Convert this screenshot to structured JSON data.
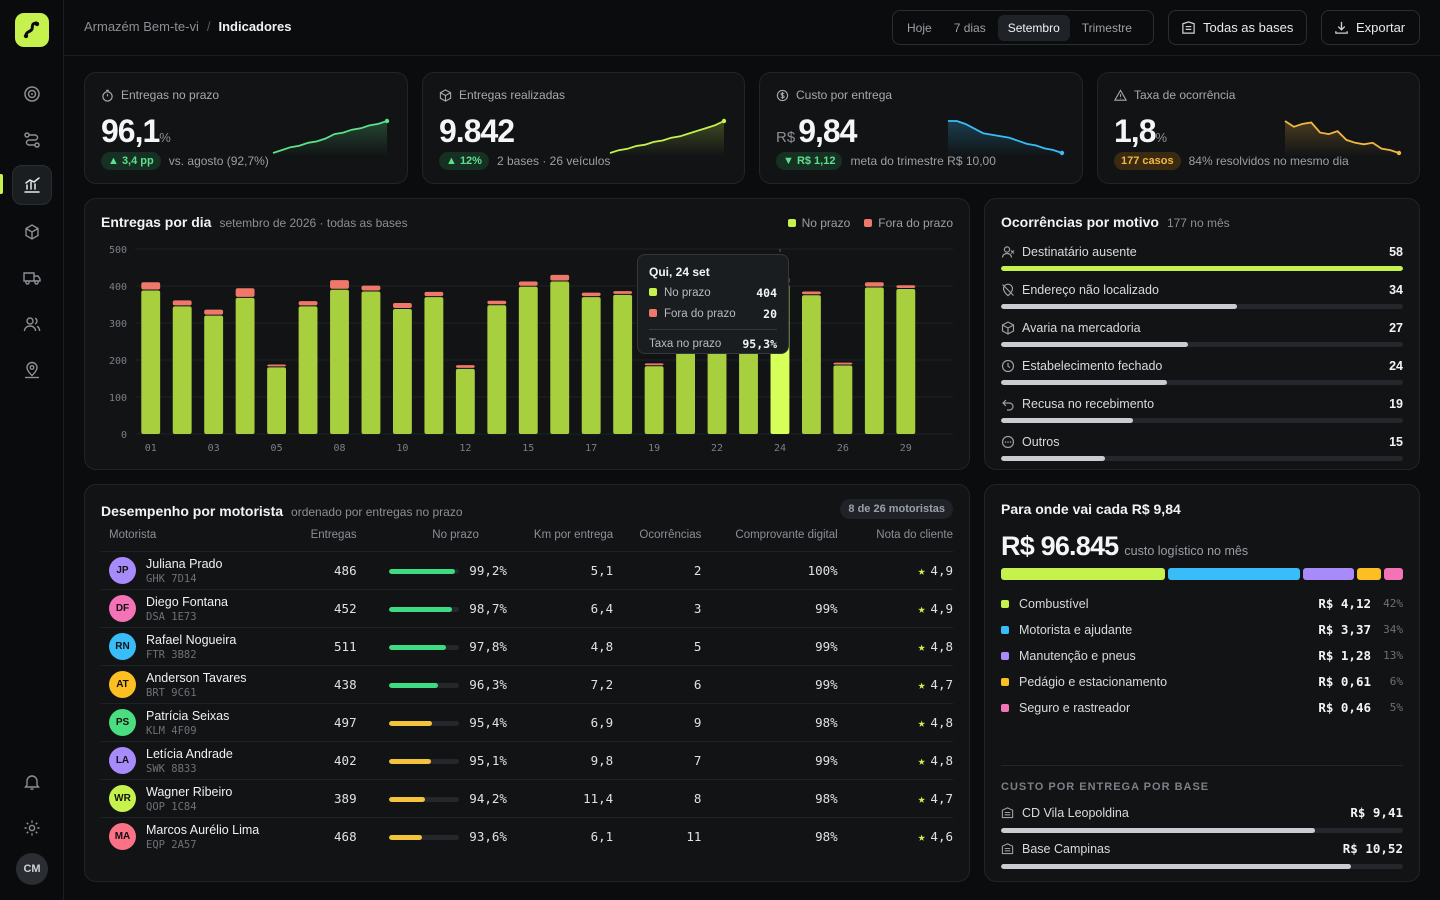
{
  "header": {
    "company": "Armazém Bem-te-vi",
    "separator": "/",
    "page": "Indicadores",
    "periods": [
      "Hoje",
      "7 dias",
      "Setembro",
      "Trimestre"
    ],
    "active_period": "Setembro",
    "bases_label": "Todas as bases",
    "export_label": "Exportar"
  },
  "user": {
    "initials": "CM"
  },
  "kpis": [
    {
      "label": "Entregas no prazo",
      "prefix": "",
      "value": "96,1",
      "suffix": "%",
      "delta": "▲ 3,4 pp",
      "note": "vs. agosto (92,7%)",
      "spark": [
        20,
        22,
        24,
        25,
        27,
        28,
        30,
        33,
        34,
        36,
        37,
        39,
        40,
        42
      ]
    },
    {
      "label": "Entregas realizadas",
      "prefix": "",
      "value": "9.842",
      "suffix": "",
      "delta": "▲ 12%",
      "note": "2 bases · 26 veículos",
      "spark": [
        20,
        22,
        23,
        25,
        26,
        28,
        29,
        31,
        32,
        34,
        36,
        38,
        40,
        43
      ]
    },
    {
      "label": "Custo por entrega",
      "prefix": "R$",
      "value": "9,84",
      "suffix": "",
      "delta": "▼ R$ 1,12",
      "note": "meta do trimestre R$ 10,00",
      "spark": [
        42,
        42,
        40,
        37,
        34,
        33,
        32,
        31,
        29,
        27,
        26,
        24,
        23,
        21
      ]
    },
    {
      "label": "Taxa de ocorrência",
      "prefix": "",
      "value": "1,8",
      "suffix": "%",
      "delta": "177 casos",
      "note": "84% resolvidos no mesmo dia",
      "spark": [
        42,
        38,
        40,
        41,
        34,
        33,
        35,
        29,
        27,
        26,
        27,
        23,
        22,
        20
      ]
    }
  ],
  "daily": {
    "title": "Entregas por dia",
    "subtitle": "setembro de 2026 · todas as bases",
    "legend_on": "No prazo",
    "legend_off": "Fora do prazo"
  },
  "chart_data": {
    "type": "bar",
    "ylim": [
      0,
      500
    ],
    "yticks": [
      0,
      100,
      200,
      300,
      400,
      500
    ],
    "categories": [
      "01",
      "02",
      "03",
      "04",
      "05",
      "06",
      "08",
      "09",
      "10",
      "11",
      "12",
      "13",
      "15",
      "16",
      "17",
      "18",
      "19",
      "20",
      "22",
      "23",
      "24",
      "25",
      "26",
      "27",
      "29",
      "30"
    ],
    "xtick_labels": [
      "01",
      "03",
      "05",
      "08",
      "10",
      "12",
      "15",
      "17",
      "19",
      "22",
      "24",
      "26",
      "29"
    ],
    "series": [
      {
        "name": "No prazo",
        "values": [
          388,
          345,
          320,
          368,
          180,
          345,
          390,
          385,
          338,
          370,
          176,
          348,
          398,
          412,
          370,
          376,
          183,
          392,
          383,
          380,
          404,
          375,
          185,
          396,
          392,
          0
        ]
      },
      {
        "name": "Fora do prazo",
        "values": [
          22,
          16,
          16,
          26,
          8,
          14,
          26,
          16,
          16,
          14,
          10,
          12,
          14,
          18,
          12,
          10,
          8,
          12,
          10,
          10,
          20,
          10,
          8,
          14,
          10,
          0
        ]
      }
    ],
    "highlight": "24",
    "tooltip": {
      "title": "Qui, 24 set",
      "on_label": "No prazo",
      "on_value": "404",
      "off_label": "Fora do prazo",
      "off_value": "20",
      "rate_label": "Taxa no prazo",
      "rate_value": "95,3%"
    }
  },
  "reasons": {
    "title": "Ocorrências por motivo",
    "subtitle": "177 no mês",
    "items": [
      {
        "label": "Destinatário ausente",
        "value": 58,
        "color": "#c6f24e",
        "icon": "user-x-icon"
      },
      {
        "label": "Endereço não localizado",
        "value": 34,
        "color": "#c9cdd1",
        "icon": "map-pin-off-icon"
      },
      {
        "label": "Avaria na mercadoria",
        "value": 27,
        "color": "#c9cdd1",
        "icon": "package-icon"
      },
      {
        "label": "Estabelecimento fechado",
        "value": 24,
        "color": "#c9cdd1",
        "icon": "clock-icon"
      },
      {
        "label": "Recusa no recebimento",
        "value": 19,
        "color": "#c9cdd1",
        "icon": "undo-icon"
      },
      {
        "label": "Outros",
        "value": 15,
        "color": "#c9cdd1",
        "icon": "more-icon"
      }
    ]
  },
  "drivers": {
    "title": "Desempenho por motorista",
    "subtitle": "ordenado por entregas no prazo",
    "badge": "8 de 26 motoristas",
    "columns": [
      "Motorista",
      "Entregas",
      "No prazo",
      "Km por entrega",
      "Ocorrências",
      "Comprovante digital",
      "Nota do cliente"
    ],
    "rows": [
      {
        "initials": "JP",
        "name": "Juliana Prado",
        "plate": "GHK 7D14",
        "deliveries": "486",
        "on_time": "99,2%",
        "pct": 99.2,
        "km": "5,1",
        "occ": "2",
        "proof": "100%",
        "rating": "4,9",
        "color": "#a78bfa"
      },
      {
        "initials": "DF",
        "name": "Diego Fontana",
        "plate": "DSA 1E73",
        "deliveries": "452",
        "on_time": "98,7%",
        "pct": 98.7,
        "km": "6,4",
        "occ": "3",
        "proof": "99%",
        "rating": "4,9",
        "color": "#f472b6"
      },
      {
        "initials": "RN",
        "name": "Rafael Nogueira",
        "plate": "FTR 3B82",
        "deliveries": "511",
        "on_time": "97,8%",
        "pct": 97.8,
        "km": "4,8",
        "occ": "5",
        "proof": "99%",
        "rating": "4,8",
        "color": "#38bdf8"
      },
      {
        "initials": "AT",
        "name": "Anderson Tavares",
        "plate": "BRT 9C61",
        "deliveries": "438",
        "on_time": "96,3%",
        "pct": 96.3,
        "km": "7,2",
        "occ": "6",
        "proof": "99%",
        "rating": "4,7",
        "color": "#fbbf24"
      },
      {
        "initials": "PS",
        "name": "Patrícia Seixas",
        "plate": "KLM 4F09",
        "deliveries": "497",
        "on_time": "95,4%",
        "pct": 95.4,
        "km": "6,9",
        "occ": "9",
        "proof": "98%",
        "rating": "4,8",
        "color": "#4ade80"
      },
      {
        "initials": "LA",
        "name": "Letícia Andrade",
        "plate": "SWK 8B33",
        "deliveries": "402",
        "on_time": "95,1%",
        "pct": 95.1,
        "km": "9,8",
        "occ": "7",
        "proof": "99%",
        "rating": "4,8",
        "color": "#a78bfa"
      },
      {
        "initials": "WR",
        "name": "Wagner Ribeiro",
        "plate": "QOP 1C84",
        "deliveries": "389",
        "on_time": "94,2%",
        "pct": 94.2,
        "km": "11,4",
        "occ": "8",
        "proof": "98%",
        "rating": "4,7",
        "color": "#c6f24e"
      },
      {
        "initials": "MA",
        "name": "Marcos Aurélio Lima",
        "plate": "EQP 2A57",
        "deliveries": "468",
        "on_time": "93,6%",
        "pct": 93.6,
        "km": "6,1",
        "occ": "11",
        "proof": "98%",
        "rating": "4,6",
        "color": "#fb7185"
      }
    ]
  },
  "costs": {
    "title": "Para onde vai cada R$ 9,84",
    "total": "R$ 96.845",
    "total_note": "custo logístico no mês",
    "items": [
      {
        "label": "Combustível",
        "amount": "R$ 4,12",
        "pct": "42%",
        "share": 42,
        "color": "#c6f24e"
      },
      {
        "label": "Motorista e ajudante",
        "amount": "R$ 3,37",
        "pct": "34%",
        "share": 34,
        "color": "#38bdf8"
      },
      {
        "label": "Manutenção e pneus",
        "amount": "R$ 1,28",
        "pct": "13%",
        "share": 13,
        "color": "#a78bfa"
      },
      {
        "label": "Pedágio e estacionamento",
        "amount": "R$ 0,61",
        "pct": "6%",
        "share": 6,
        "color": "#fbbf24"
      },
      {
        "label": "Seguro e rastreador",
        "amount": "R$ 0,46",
        "pct": "5%",
        "share": 5,
        "color": "#f472b6"
      }
    ],
    "bases_title": "CUSTO POR ENTREGA POR BASE",
    "bases": [
      {
        "label": "CD Vila Leopoldina",
        "value": "R$ 9,41",
        "share": 78
      },
      {
        "label": "Base Campinas",
        "value": "R$ 10,52",
        "share": 87
      }
    ]
  }
}
